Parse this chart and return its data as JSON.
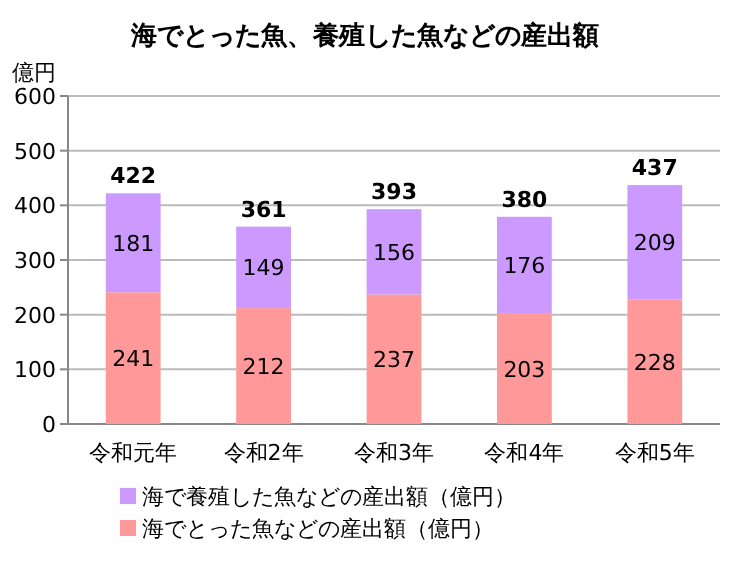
{
  "chart_data": {
    "type": "bar",
    "title": "海でとった魚、養殖した魚などの産出額",
    "ylabel": "億円",
    "categories": [
      "令和元年",
      "令和2年",
      "令和3年",
      "令和4年",
      "令和5年"
    ],
    "series": [
      {
        "name": "海でとった魚などの産出額（億円）",
        "color": "#ff9999",
        "values": [
          241,
          212,
          237,
          203,
          228
        ]
      },
      {
        "name": "海で養殖した魚などの産出額（億円）",
        "color": "#cc99ff",
        "values": [
          181,
          149,
          156,
          176,
          209
        ]
      }
    ],
    "stacked": true,
    "data_labels": true,
    "totals": [
      "422",
      "361",
      "393",
      "380",
      "437"
    ],
    "ylim": [
      0,
      600
    ],
    "yticks": [
      0,
      100,
      200,
      300,
      400,
      500,
      600
    ],
    "grid": "y",
    "legend": "bottom"
  }
}
